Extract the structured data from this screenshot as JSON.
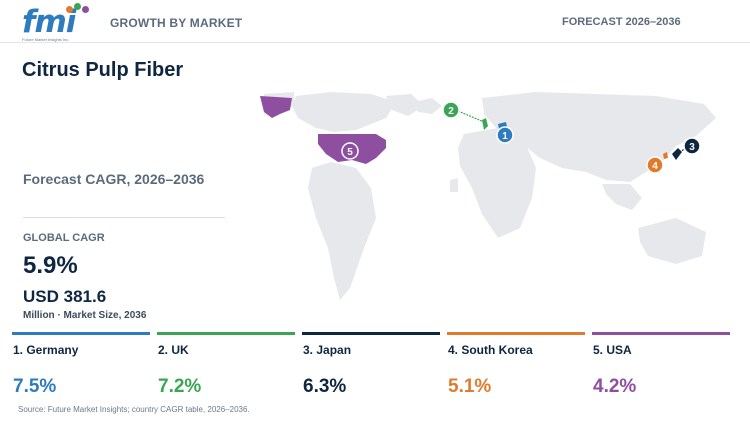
{
  "header": {
    "logo_text": "fmi",
    "logo_subtitle": "Future Market Insights Inc.",
    "section": "GROWTH BY MARKET",
    "forecast": "FORECAST 2026–2036"
  },
  "title": "Citrus Pulp Fiber",
  "cagr_label": "Forecast CAGR, 2026–2036",
  "global": {
    "label": "GLOBAL CAGR",
    "value": "5.9%",
    "market_value": "USD 381.6",
    "market_sub": "Million · Market Size, 2036"
  },
  "countries": [
    {
      "rank": "1",
      "name": "1. Germany",
      "cagr": "7.5%",
      "color": "#2e7bbf"
    },
    {
      "rank": "2",
      "name": "2. UK",
      "cagr": "7.2%",
      "color": "#3aa655"
    },
    {
      "rank": "3",
      "name": "3. Japan",
      "cagr": "6.3%",
      "color": "#0f2640"
    },
    {
      "rank": "4",
      "name": "4. South Korea",
      "cagr": "5.1%",
      "color": "#e07b2e"
    },
    {
      "rank": "5",
      "name": "5. USA",
      "cagr": "4.2%",
      "color": "#8e4fa0"
    }
  ],
  "source": "Source: Future Market Insights; country CAGR table, 2026–2036.",
  "colors": {
    "map_land": "#e6e8eb",
    "brand_blue": "#2e7bbf",
    "dark_navy": "#0f2640"
  }
}
